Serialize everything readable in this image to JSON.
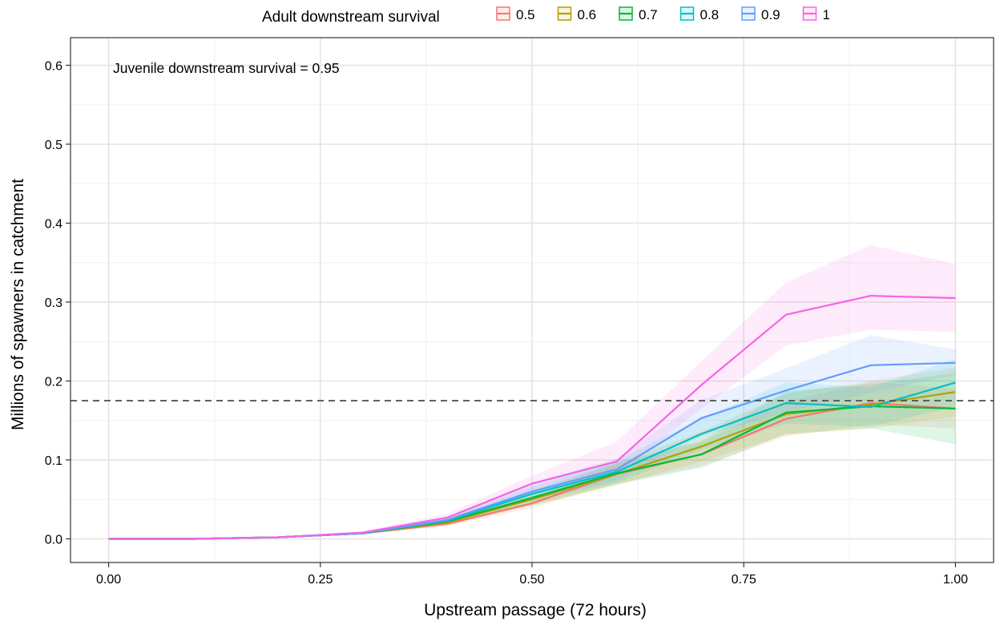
{
  "chart_data": {
    "type": "line",
    "title": "",
    "xlabel": "Upstream passage (72 hours)",
    "ylabel": "Millions of spawners in catchment",
    "annotation": "Juvenile downstream survival = 0.95",
    "legend": {
      "title": "Adult downstream survival",
      "placement": "top"
    },
    "xlim": [
      -0.045,
      1.045
    ],
    "ylim": [
      -0.03,
      0.635
    ],
    "x_ticks": [
      0,
      0.25,
      0.5,
      0.75,
      1
    ],
    "x_tick_labels": [
      "0.00",
      "0.25",
      "0.50",
      "0.75",
      "1.00"
    ],
    "y_ticks": [
      0,
      0.1,
      0.2,
      0.3,
      0.4,
      0.5,
      0.6
    ],
    "y_tick_labels": [
      "0.0",
      "0.1",
      "0.2",
      "0.3",
      "0.4",
      "0.5",
      "0.6"
    ],
    "grid": true,
    "reference_line": {
      "y": 0.175,
      "style": "dashed",
      "color": "#555555"
    },
    "x": [
      0,
      0.1,
      0.2,
      0.3,
      0.4,
      0.5,
      0.6,
      0.7,
      0.8,
      0.9,
      1
    ],
    "series": [
      {
        "name": "0.5",
        "color": "#F8766D",
        "values": [
          0,
          0,
          0.002,
          0.007,
          0.019,
          0.045,
          0.082,
          0.107,
          0.152,
          0.172,
          0.165
        ],
        "lower": [
          0,
          0,
          0.002,
          0.006,
          0.016,
          0.039,
          0.07,
          0.092,
          0.13,
          0.145,
          0.14
        ],
        "upper": [
          0,
          0,
          0.003,
          0.008,
          0.022,
          0.051,
          0.094,
          0.122,
          0.174,
          0.199,
          0.19
        ]
      },
      {
        "name": "0.6",
        "color": "#B79F00",
        "values": [
          0,
          0,
          0.002,
          0.007,
          0.021,
          0.05,
          0.082,
          0.117,
          0.158,
          0.17,
          0.186
        ],
        "lower": [
          0,
          0,
          0.002,
          0.006,
          0.017,
          0.042,
          0.068,
          0.098,
          0.132,
          0.14,
          0.155
        ],
        "upper": [
          0,
          0,
          0.003,
          0.008,
          0.025,
          0.058,
          0.096,
          0.136,
          0.184,
          0.2,
          0.217
        ]
      },
      {
        "name": "0.7",
        "color": "#00BA38",
        "values": [
          0,
          0,
          0.002,
          0.007,
          0.022,
          0.052,
          0.083,
          0.107,
          0.16,
          0.168,
          0.165
        ],
        "lower": [
          0,
          0,
          0.002,
          0.006,
          0.018,
          0.043,
          0.069,
          0.09,
          0.133,
          0.14,
          0.12
        ],
        "upper": [
          0,
          0,
          0.003,
          0.008,
          0.026,
          0.061,
          0.097,
          0.124,
          0.187,
          0.196,
          0.21
        ]
      },
      {
        "name": "0.8",
        "color": "#00BFC4",
        "values": [
          0,
          0,
          0.002,
          0.007,
          0.023,
          0.057,
          0.085,
          0.133,
          0.172,
          0.167,
          0.198
        ],
        "lower": [
          0,
          0,
          0.002,
          0.006,
          0.019,
          0.048,
          0.071,
          0.113,
          0.146,
          0.142,
          0.168
        ],
        "upper": [
          0,
          0,
          0.003,
          0.008,
          0.027,
          0.066,
          0.099,
          0.153,
          0.198,
          0.192,
          0.228
        ]
      },
      {
        "name": "0.9",
        "color": "#619CFF",
        "values": [
          0,
          0,
          0.002,
          0.007,
          0.024,
          0.06,
          0.088,
          0.153,
          0.188,
          0.22,
          0.223
        ],
        "lower": [
          0,
          0,
          0.002,
          0.006,
          0.02,
          0.05,
          0.074,
          0.13,
          0.16,
          0.185,
          0.208
        ],
        "upper": [
          0,
          0,
          0.003,
          0.008,
          0.028,
          0.07,
          0.102,
          0.176,
          0.216,
          0.258,
          0.24
        ]
      },
      {
        "name": "1",
        "color": "#F564E3",
        "values": [
          0,
          0,
          0.002,
          0.008,
          0.027,
          0.07,
          0.098,
          0.195,
          0.284,
          0.308,
          0.305
        ],
        "lower": [
          0,
          0,
          0.002,
          0.007,
          0.022,
          0.06,
          0.082,
          0.165,
          0.245,
          0.265,
          0.262
        ],
        "upper": [
          0,
          0,
          0.003,
          0.009,
          0.032,
          0.08,
          0.123,
          0.225,
          0.325,
          0.372,
          0.348
        ]
      }
    ]
  }
}
